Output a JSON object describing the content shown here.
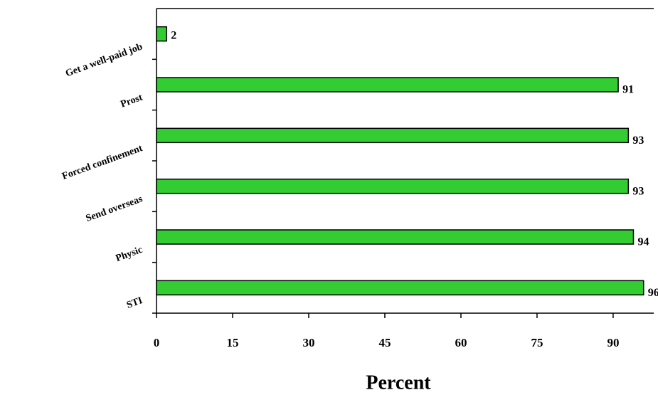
{
  "chart_data": {
    "type": "barh",
    "x_label": "Percent",
    "categories": [
      "Get a well-paid job",
      "Prost",
      "Forced confinement",
      "Send overseas",
      "Physic",
      "STI"
    ],
    "values": [
      2,
      91,
      93,
      93,
      94,
      96
    ],
    "color": "#33cc33",
    "xlim": [
      0,
      98
    ],
    "xticks": [
      0,
      15,
      30,
      45,
      60,
      75,
      90
    ]
  }
}
